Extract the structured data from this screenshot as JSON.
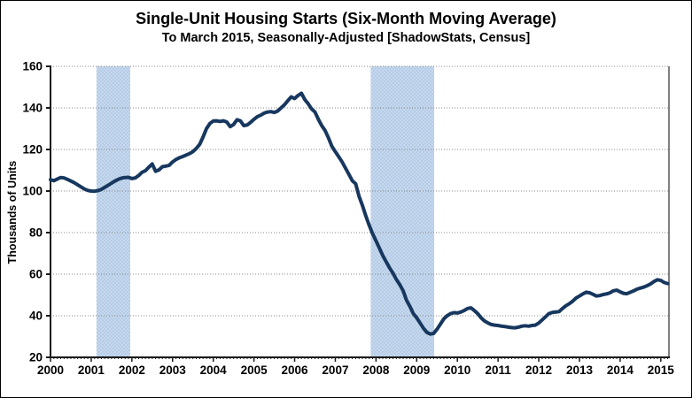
{
  "page": {
    "background_color": "#FFFFFF",
    "outer_border_color": "#000000"
  },
  "chart_data": {
    "type": "line",
    "title": "Single-Unit Housing Starts (Six-Month Moving Average)",
    "subtitle": "To March 2015, Seasonally-Adjusted [ShadowStats, Census]",
    "xlabel": "",
    "ylabel": "Thousands of Units",
    "legend": "none",
    "grid": "horizontal-dotted",
    "ylim": [
      20,
      160
    ],
    "xlim": [
      2000,
      2015.2
    ],
    "y_ticks": [
      160,
      140,
      120,
      100,
      80,
      60,
      40,
      20
    ],
    "x_ticks": [
      2000,
      2001,
      2002,
      2003,
      2004,
      2005,
      2006,
      2007,
      2008,
      2009,
      2010,
      2011,
      2012,
      2013,
      2014,
      2015
    ],
    "shaded_regions": [
      {
        "name": "recession-band-2001",
        "x_start": 2001.13,
        "x_end": 2001.96
      },
      {
        "name": "recession-band-2007-2009",
        "x_start": 2007.87,
        "x_end": 2009.43
      }
    ],
    "series": [
      {
        "name": "Single-unit housing starts, six-month moving average",
        "x_start_year": 2000,
        "points_per_year": 12,
        "values": [
          105.5,
          105.0,
          105.8,
          106.5,
          106.3,
          105.6,
          104.8,
          104.0,
          103.0,
          102.0,
          101.0,
          100.3,
          100.0,
          99.9,
          100.2,
          100.8,
          101.8,
          102.8,
          103.8,
          104.8,
          105.6,
          106.2,
          106.5,
          106.6,
          106.0,
          106.3,
          107.5,
          109.0,
          109.8,
          111.5,
          113.0,
          109.5,
          110.2,
          111.7,
          112.0,
          112.4,
          114.0,
          115.2,
          116.0,
          116.6,
          117.3,
          118.0,
          119.0,
          120.5,
          122.5,
          126.0,
          130.0,
          132.5,
          133.7,
          133.8,
          133.5,
          133.8,
          133.2,
          131.0,
          132.0,
          134.3,
          133.8,
          131.5,
          131.8,
          133.0,
          134.5,
          135.8,
          136.5,
          137.5,
          138.0,
          138.2,
          137.8,
          138.5,
          140.0,
          141.5,
          143.5,
          145.3,
          144.5,
          146.0,
          147.0,
          144.0,
          142.0,
          139.5,
          138.0,
          134.5,
          131.5,
          129.0,
          125.5,
          121.5,
          119.0,
          116.5,
          114.0,
          111.0,
          108.0,
          105.0,
          103.5,
          97.5,
          93.0,
          88.0,
          83.5,
          79.5,
          76.0,
          72.5,
          69.0,
          66.0,
          63.0,
          60.5,
          57.5,
          55.0,
          52.0,
          47.5,
          44.5,
          41.0,
          39.0,
          36.5,
          34.0,
          32.0,
          31.2,
          31.5,
          33.5,
          36.0,
          38.5,
          40.0,
          41.0,
          41.5,
          41.3,
          41.8,
          42.5,
          43.5,
          43.8,
          42.5,
          41.0,
          39.0,
          37.5,
          36.5,
          35.8,
          35.5,
          35.3,
          35.0,
          34.8,
          34.5,
          34.3,
          34.2,
          34.5,
          35.0,
          35.2,
          35.0,
          35.3,
          35.5,
          36.5,
          38.0,
          39.5,
          41.0,
          41.6,
          41.8,
          42.0,
          43.5,
          44.8,
          45.8,
          47.0,
          48.5,
          49.5,
          50.5,
          51.3,
          51.0,
          50.3,
          49.5,
          49.7,
          50.2,
          50.5,
          51.0,
          52.0,
          52.3,
          51.5,
          50.8,
          50.6,
          51.3,
          52.0,
          52.8,
          53.3,
          53.8,
          54.5,
          55.3,
          56.5,
          57.3,
          57.0,
          56.0,
          55.5
        ]
      }
    ],
    "colors": {
      "line": "#17375E",
      "band_fill": "#B5CCE7",
      "band_dot": "#DDE9F6",
      "gridline": "#888888",
      "axis_dark": "#1A1A1A",
      "axis_gray": "#808080",
      "text": "#000000"
    }
  }
}
